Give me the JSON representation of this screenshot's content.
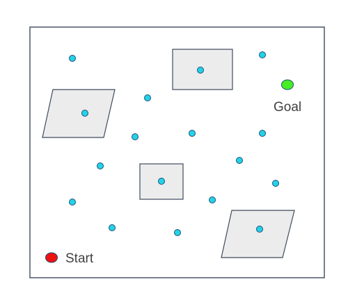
{
  "labels": {
    "start": "Start",
    "goal": "Goal"
  },
  "colors": {
    "border": "#4a5568",
    "obstacle_fill": "#ececec",
    "obstacle_stroke": "#3f4a5c",
    "node_fill": "#22d3e6",
    "node_stroke": "#1f4e79",
    "start_fill": "#ee1111",
    "goal_fill": "#44ee22"
  }
}
